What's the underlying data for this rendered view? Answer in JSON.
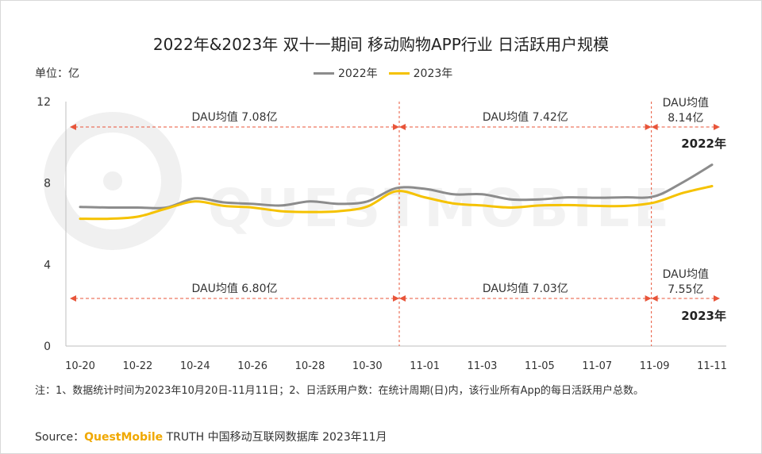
{
  "title": "2022年&2023年 双十一期间 移动购物APP行业 日活跃用户规模",
  "unit_label": "单位：亿",
  "watermark": "QUESTMOBILE",
  "colors": {
    "s2022": "#8c8c8c",
    "s2023": "#f5c200",
    "divider": "#e8553a",
    "axis": "#bfbfbf"
  },
  "chart_data": {
    "type": "line",
    "x_tick_labels": [
      "10-20",
      "10-22",
      "10-24",
      "10-26",
      "10-28",
      "10-30",
      "11-01",
      "11-03",
      "11-05",
      "11-07",
      "11-09",
      "11-11"
    ],
    "x": [
      "10-20",
      "10-21",
      "10-22",
      "10-23",
      "10-24",
      "10-25",
      "10-26",
      "10-27",
      "10-28",
      "10-29",
      "10-30",
      "10-31",
      "11-01",
      "11-02",
      "11-03",
      "11-04",
      "11-05",
      "11-06",
      "11-07",
      "11-08",
      "11-09",
      "11-10",
      "11-11"
    ],
    "ylim": [
      0,
      12
    ],
    "y_ticks": [
      0,
      4,
      8,
      12
    ],
    "series": [
      {
        "name": "2022年",
        "color": "#8c8c8c",
        "values": [
          6.83,
          6.8,
          6.8,
          6.8,
          7.25,
          7.05,
          6.98,
          6.9,
          7.1,
          6.98,
          7.1,
          7.75,
          7.72,
          7.45,
          7.45,
          7.2,
          7.2,
          7.3,
          7.28,
          7.3,
          7.35,
          8.05,
          8.9
        ]
      },
      {
        "name": "2023年",
        "color": "#f5c200",
        "values": [
          6.25,
          6.25,
          6.35,
          6.75,
          7.1,
          6.88,
          6.8,
          6.62,
          6.58,
          6.62,
          6.85,
          7.6,
          7.3,
          7.0,
          6.9,
          6.8,
          6.9,
          6.92,
          6.88,
          6.88,
          7.05,
          7.52,
          7.85
        ]
      }
    ],
    "year_labels": [
      "2022年",
      "2023年"
    ],
    "periods": [
      {
        "label_2022": "DAU均值  7.08亿",
        "label_2023": "DAU均值  6.80亿",
        "from": "10-20",
        "to": "10-31"
      },
      {
        "label_2022": "DAU均值  7.42亿",
        "label_2023": "DAU均值  7.03亿",
        "from": "10-31",
        "to": "11-09"
      },
      {
        "label_2022": [
          "DAU均值",
          "8.14亿"
        ],
        "label_2023": [
          "DAU均值",
          "7.55亿"
        ],
        "from": "11-09",
        "to": "11-11"
      }
    ]
  },
  "note": "注：1、数据统计时间为2023年10月20日-11月11日；2、日活跃用户数：在统计周期(日)内，该行业所有App的每日活跃用户总数。",
  "source": {
    "prefix": "Source：",
    "brand": "QuestMobile",
    "rest": " TRUTH 中国移动互联网数据库 2023年11月"
  }
}
